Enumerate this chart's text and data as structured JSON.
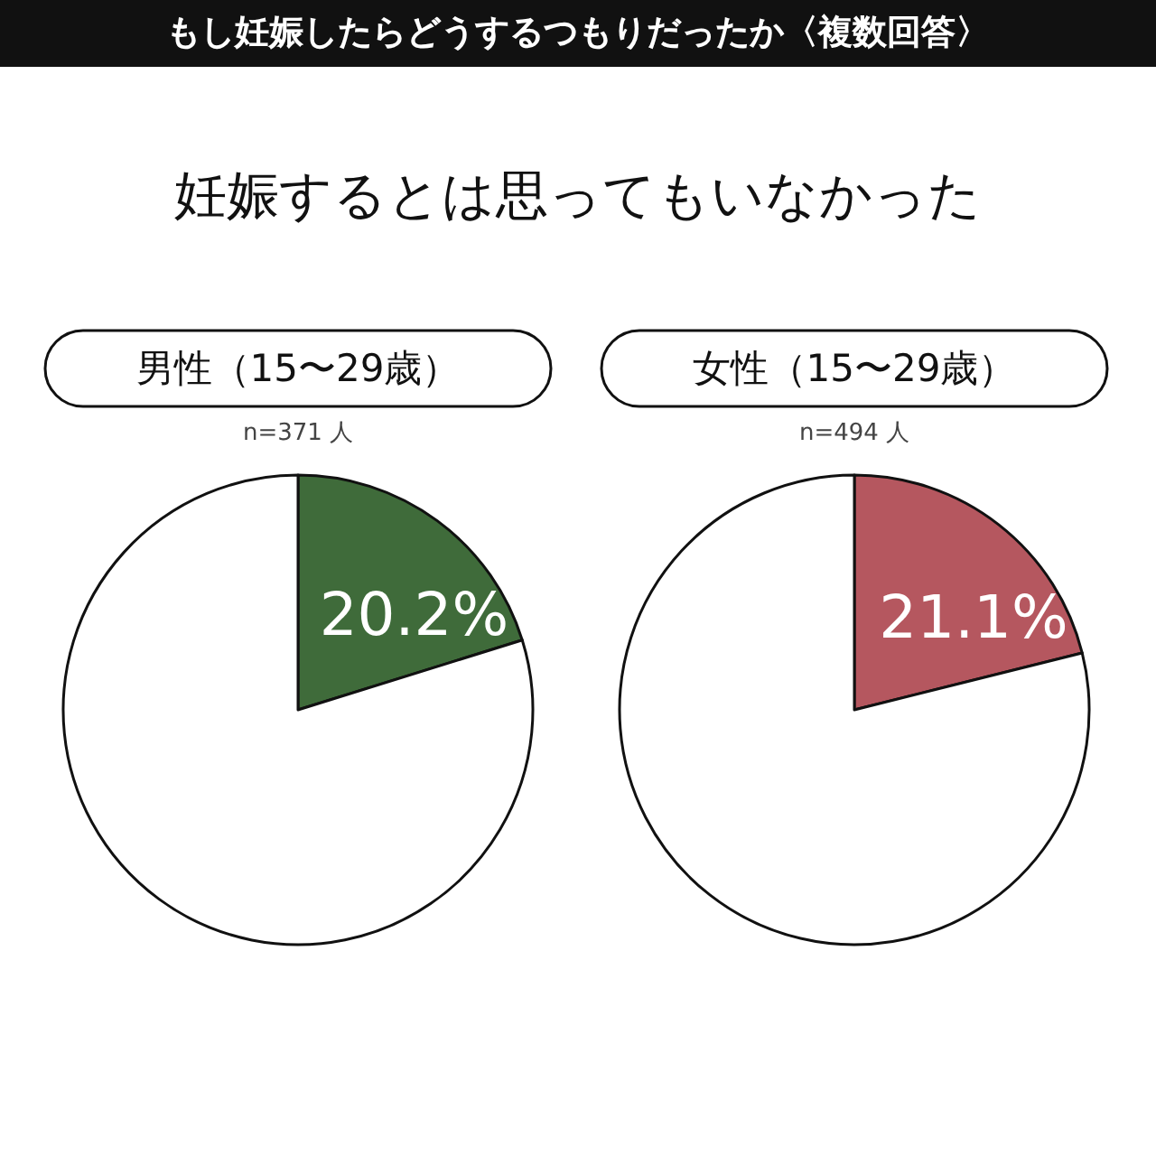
{
  "chart_data": [
    {
      "type": "other",
      "title": "もし妊娠したらどうするつもりだったか〈複数回答〉",
      "subtitle": "妊娠するとは思ってもいなかった"
    },
    {
      "type": "pie",
      "title": "男性（15〜29歳）",
      "subtitle": "n=371 人",
      "categories": [
        null,
        null
      ],
      "values": [
        20.2,
        79.8
      ],
      "colors": [
        "#3f6b3a",
        "#ffffff"
      ],
      "value_labels": [
        "20.2%",
        null
      ]
    },
    {
      "type": "pie",
      "title": "女性（15〜29歳）",
      "subtitle": "n=494 人",
      "categories": [
        null,
        null
      ],
      "values": [
        21.1,
        78.9
      ],
      "colors": [
        "#b5575f",
        "#ffffff"
      ],
      "value_labels": [
        "21.1%",
        null
      ]
    }
  ]
}
